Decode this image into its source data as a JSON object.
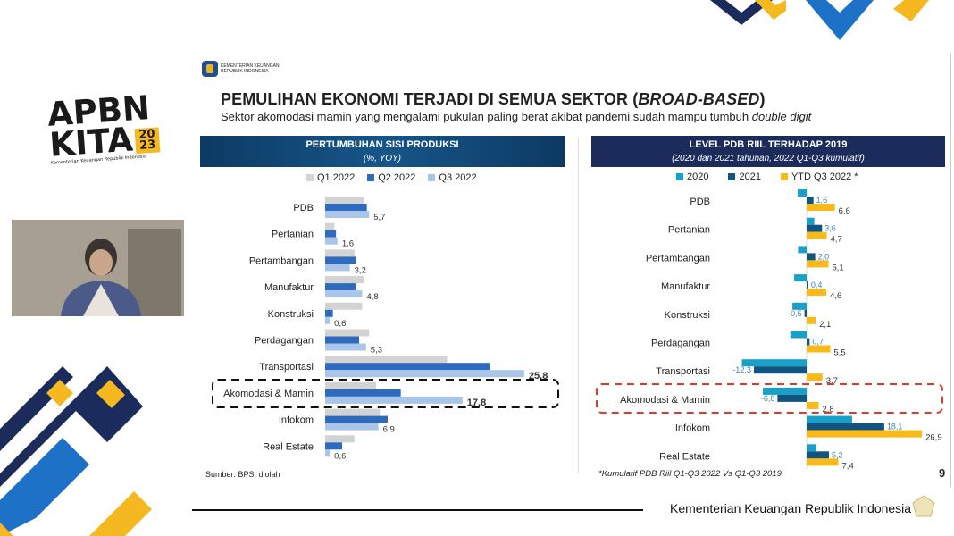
{
  "brand": {
    "apbn": "APBN",
    "kita": "KITA",
    "year_top": "20",
    "year_bottom": "23",
    "tagline": "Kementerian Keuangan Republik Indonesia"
  },
  "slide": {
    "logo_line1": "KEMENTERIAN KEUANGAN",
    "logo_line2": "REPUBLIK INDONESIA",
    "title": "PEMULIHAN EKONOMI TERJADI DI SEMUA SEKTOR (BROAD-BASED)",
    "title_main": "PEMULIHAN EKONOMI TERJADI DI SEMUA SEKTOR (",
    "title_italic": "BROAD-BASED",
    "title_end": ")",
    "subtitle_main": "Sektor akomodasi mamin yang mengalami pukulan paling berat akibat pandemi sudah mampu tumbuh ",
    "subtitle_italic": "double digit",
    "source": "Sumber: BPS, diolah",
    "footnote": "*Kumulatif PDB Riil Q1-Q3 2022 Vs Q1-Q3 2019",
    "page_number": "9"
  },
  "footer": {
    "text": "Kementerian Keuangan Republik Indonesia"
  },
  "colors": {
    "navy": "#1b2c5c",
    "yellow": "#f5b820",
    "blue": "#1d72c7",
    "q1": "#d3d3d3",
    "q2": "#2e6bbf",
    "q3": "#a9c6ea",
    "c2020": "#1aa0c8",
    "c2021": "#12537f",
    "ytd": "#f8b919",
    "highlight_left": "#111111",
    "highlight_right": "#e03a2f"
  },
  "chart_data": [
    {
      "type": "bar",
      "orientation": "horizontal",
      "title": "PERTUMBUHAN SISI PRODUKSI",
      "subtitle": "(%, YOY)",
      "categories": [
        "PDB",
        "Pertanian",
        "Pertambangan",
        "Manufaktur",
        "Konstruksi",
        "Perdagangan",
        "Transportasi",
        "Akomodasi & Mamin",
        "Infokom",
        "Real Estate"
      ],
      "series": [
        {
          "name": "Q1 2022",
          "values": [
            5.0,
            1.2,
            3.8,
            5.1,
            4.8,
            5.7,
            15.8,
            6.6,
            7.1,
            3.8
          ]
        },
        {
          "name": "Q2 2022",
          "values": [
            5.4,
            1.4,
            4.0,
            4.0,
            1.0,
            4.4,
            21.3,
            9.8,
            8.1,
            2.2
          ]
        },
        {
          "name": "Q3 2022",
          "values": [
            5.7,
            1.6,
            3.2,
            4.8,
            0.6,
            5.3,
            25.8,
            17.8,
            6.9,
            0.6
          ]
        }
      ],
      "data_labels": [
        "5,7",
        "1,6",
        "3,2",
        "4,8",
        "0,6",
        "5,3",
        "25,8",
        "17,8",
        "6,9",
        "0,6"
      ],
      "highlighted_category": "Akomodasi & Mamin",
      "legend": "top"
    },
    {
      "type": "bar",
      "orientation": "horizontal",
      "title": "LEVEL PDB RIIL TERHADAP 2019",
      "subtitle": "(2020 dan 2021 tahunan, 2022 Q1-Q3 kumulatif)",
      "categories": [
        "PDB",
        "Pertanian",
        "Pertambangan",
        "Manufaktur",
        "Konstruksi",
        "Perdagangan",
        "Transportasi",
        "Akomodasi & Mamin",
        "Infokom",
        "Real Estate"
      ],
      "series": [
        {
          "name": "2020",
          "values": [
            -2.1,
            1.8,
            -2.0,
            -2.9,
            -3.3,
            -3.8,
            -15.1,
            -10.2,
            10.6,
            2.3
          ]
        },
        {
          "name": "2021",
          "values": [
            1.6,
            3.6,
            2.0,
            0.4,
            -0.5,
            0.7,
            -12.3,
            -6.8,
            18.1,
            5.2
          ],
          "labels": [
            "1,6",
            "3,6",
            "2,0",
            "0,4",
            "-0,5",
            "0,7",
            "-12,3",
            "-6,8",
            "18,1",
            "5,2"
          ]
        },
        {
          "name": "YTD Q3 2022 *",
          "values": [
            6.6,
            4.7,
            5.1,
            4.6,
            2.1,
            5.5,
            3.7,
            2.8,
            26.9,
            7.4
          ],
          "labels": [
            "6,6",
            "4,7",
            "5,1",
            "4,6",
            "2,1",
            "5,5",
            "3,7",
            "2,8",
            "26,9",
            "7,4"
          ]
        }
      ],
      "highlighted_category": "Akomodasi & Mamin",
      "legend": "top"
    }
  ]
}
